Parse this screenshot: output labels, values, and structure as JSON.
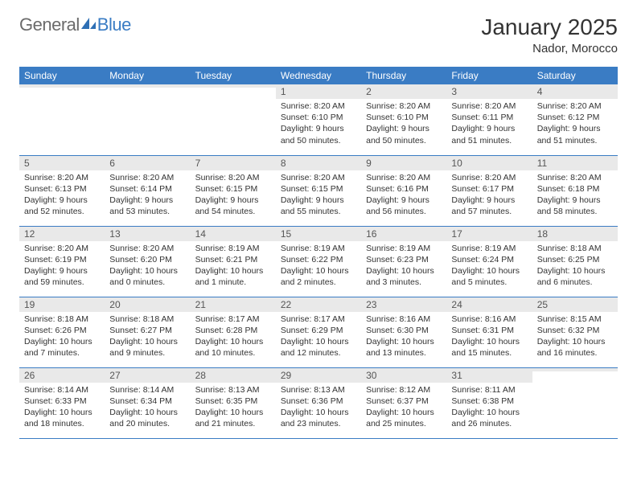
{
  "logo": {
    "text_general": "General",
    "text_blue": "Blue",
    "color_general": "#6b6b6b",
    "color_blue": "#3a7cc4"
  },
  "title": "January 2025",
  "location": "Nador, Morocco",
  "colors": {
    "header_bg": "#3a7cc4",
    "header_text": "#ffffff",
    "daynum_bg": "#e9e9e9",
    "border": "#3a7cc4",
    "text": "#333333",
    "background": "#ffffff"
  },
  "typography": {
    "title_fontsize": 28,
    "location_fontsize": 15,
    "header_fontsize": 12,
    "daynum_fontsize": 12,
    "body_fontsize": 10.5
  },
  "weekdays": [
    "Sunday",
    "Monday",
    "Tuesday",
    "Wednesday",
    "Thursday",
    "Friday",
    "Saturday"
  ],
  "weeks": [
    [
      {
        "day": "",
        "sunrise": "",
        "sunset": "",
        "daylight": ""
      },
      {
        "day": "",
        "sunrise": "",
        "sunset": "",
        "daylight": ""
      },
      {
        "day": "",
        "sunrise": "",
        "sunset": "",
        "daylight": ""
      },
      {
        "day": "1",
        "sunrise": "Sunrise: 8:20 AM",
        "sunset": "Sunset: 6:10 PM",
        "daylight": "Daylight: 9 hours and 50 minutes."
      },
      {
        "day": "2",
        "sunrise": "Sunrise: 8:20 AM",
        "sunset": "Sunset: 6:10 PM",
        "daylight": "Daylight: 9 hours and 50 minutes."
      },
      {
        "day": "3",
        "sunrise": "Sunrise: 8:20 AM",
        "sunset": "Sunset: 6:11 PM",
        "daylight": "Daylight: 9 hours and 51 minutes."
      },
      {
        "day": "4",
        "sunrise": "Sunrise: 8:20 AM",
        "sunset": "Sunset: 6:12 PM",
        "daylight": "Daylight: 9 hours and 51 minutes."
      }
    ],
    [
      {
        "day": "5",
        "sunrise": "Sunrise: 8:20 AM",
        "sunset": "Sunset: 6:13 PM",
        "daylight": "Daylight: 9 hours and 52 minutes."
      },
      {
        "day": "6",
        "sunrise": "Sunrise: 8:20 AM",
        "sunset": "Sunset: 6:14 PM",
        "daylight": "Daylight: 9 hours and 53 minutes."
      },
      {
        "day": "7",
        "sunrise": "Sunrise: 8:20 AM",
        "sunset": "Sunset: 6:15 PM",
        "daylight": "Daylight: 9 hours and 54 minutes."
      },
      {
        "day": "8",
        "sunrise": "Sunrise: 8:20 AM",
        "sunset": "Sunset: 6:15 PM",
        "daylight": "Daylight: 9 hours and 55 minutes."
      },
      {
        "day": "9",
        "sunrise": "Sunrise: 8:20 AM",
        "sunset": "Sunset: 6:16 PM",
        "daylight": "Daylight: 9 hours and 56 minutes."
      },
      {
        "day": "10",
        "sunrise": "Sunrise: 8:20 AM",
        "sunset": "Sunset: 6:17 PM",
        "daylight": "Daylight: 9 hours and 57 minutes."
      },
      {
        "day": "11",
        "sunrise": "Sunrise: 8:20 AM",
        "sunset": "Sunset: 6:18 PM",
        "daylight": "Daylight: 9 hours and 58 minutes."
      }
    ],
    [
      {
        "day": "12",
        "sunrise": "Sunrise: 8:20 AM",
        "sunset": "Sunset: 6:19 PM",
        "daylight": "Daylight: 9 hours and 59 minutes."
      },
      {
        "day": "13",
        "sunrise": "Sunrise: 8:20 AM",
        "sunset": "Sunset: 6:20 PM",
        "daylight": "Daylight: 10 hours and 0 minutes."
      },
      {
        "day": "14",
        "sunrise": "Sunrise: 8:19 AM",
        "sunset": "Sunset: 6:21 PM",
        "daylight": "Daylight: 10 hours and 1 minute."
      },
      {
        "day": "15",
        "sunrise": "Sunrise: 8:19 AM",
        "sunset": "Sunset: 6:22 PM",
        "daylight": "Daylight: 10 hours and 2 minutes."
      },
      {
        "day": "16",
        "sunrise": "Sunrise: 8:19 AM",
        "sunset": "Sunset: 6:23 PM",
        "daylight": "Daylight: 10 hours and 3 minutes."
      },
      {
        "day": "17",
        "sunrise": "Sunrise: 8:19 AM",
        "sunset": "Sunset: 6:24 PM",
        "daylight": "Daylight: 10 hours and 5 minutes."
      },
      {
        "day": "18",
        "sunrise": "Sunrise: 8:18 AM",
        "sunset": "Sunset: 6:25 PM",
        "daylight": "Daylight: 10 hours and 6 minutes."
      }
    ],
    [
      {
        "day": "19",
        "sunrise": "Sunrise: 8:18 AM",
        "sunset": "Sunset: 6:26 PM",
        "daylight": "Daylight: 10 hours and 7 minutes."
      },
      {
        "day": "20",
        "sunrise": "Sunrise: 8:18 AM",
        "sunset": "Sunset: 6:27 PM",
        "daylight": "Daylight: 10 hours and 9 minutes."
      },
      {
        "day": "21",
        "sunrise": "Sunrise: 8:17 AM",
        "sunset": "Sunset: 6:28 PM",
        "daylight": "Daylight: 10 hours and 10 minutes."
      },
      {
        "day": "22",
        "sunrise": "Sunrise: 8:17 AM",
        "sunset": "Sunset: 6:29 PM",
        "daylight": "Daylight: 10 hours and 12 minutes."
      },
      {
        "day": "23",
        "sunrise": "Sunrise: 8:16 AM",
        "sunset": "Sunset: 6:30 PM",
        "daylight": "Daylight: 10 hours and 13 minutes."
      },
      {
        "day": "24",
        "sunrise": "Sunrise: 8:16 AM",
        "sunset": "Sunset: 6:31 PM",
        "daylight": "Daylight: 10 hours and 15 minutes."
      },
      {
        "day": "25",
        "sunrise": "Sunrise: 8:15 AM",
        "sunset": "Sunset: 6:32 PM",
        "daylight": "Daylight: 10 hours and 16 minutes."
      }
    ],
    [
      {
        "day": "26",
        "sunrise": "Sunrise: 8:14 AM",
        "sunset": "Sunset: 6:33 PM",
        "daylight": "Daylight: 10 hours and 18 minutes."
      },
      {
        "day": "27",
        "sunrise": "Sunrise: 8:14 AM",
        "sunset": "Sunset: 6:34 PM",
        "daylight": "Daylight: 10 hours and 20 minutes."
      },
      {
        "day": "28",
        "sunrise": "Sunrise: 8:13 AM",
        "sunset": "Sunset: 6:35 PM",
        "daylight": "Daylight: 10 hours and 21 minutes."
      },
      {
        "day": "29",
        "sunrise": "Sunrise: 8:13 AM",
        "sunset": "Sunset: 6:36 PM",
        "daylight": "Daylight: 10 hours and 23 minutes."
      },
      {
        "day": "30",
        "sunrise": "Sunrise: 8:12 AM",
        "sunset": "Sunset: 6:37 PM",
        "daylight": "Daylight: 10 hours and 25 minutes."
      },
      {
        "day": "31",
        "sunrise": "Sunrise: 8:11 AM",
        "sunset": "Sunset: 6:38 PM",
        "daylight": "Daylight: 10 hours and 26 minutes."
      },
      {
        "day": "",
        "sunrise": "",
        "sunset": "",
        "daylight": ""
      }
    ]
  ]
}
